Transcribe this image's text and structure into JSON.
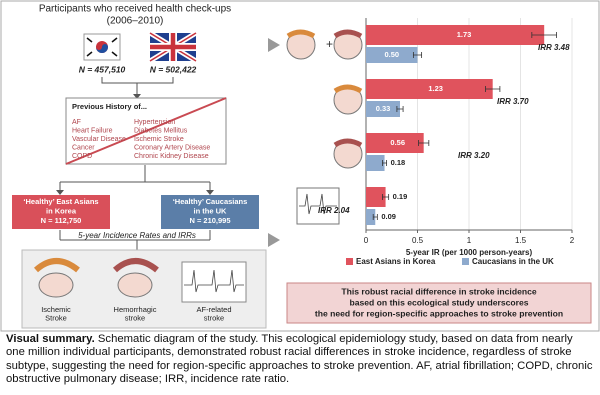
{
  "header": {
    "title_lines": [
      "Participants who received health check-ups",
      "(2006–2010)"
    ]
  },
  "cohorts": [
    {
      "n": "N = 457,510"
    },
    {
      "n": "N = 502,422"
    }
  ],
  "history": {
    "title": "Previous History of...",
    "left_items": [
      "AF",
      "Heart Failure",
      "Vascular Disease",
      "Cancer",
      "COPD"
    ],
    "right_items": [
      "Hypertension",
      "Diabetes Mellitus",
      "Ischemic Stroke",
      "Coronary Artery Disease",
      "Chronic Kidney Disease"
    ]
  },
  "groups": [
    {
      "lines": [
        "‘Healthy’ East Asians",
        "in Korea",
        "N = 112,750"
      ]
    },
    {
      "lines": [
        "‘Healthy’ Caucasians",
        "in the UK",
        "N = 210,995"
      ]
    }
  ],
  "outcomes": {
    "title": "5-year Incidence Rates and IRRs",
    "items": [
      [
        "Ischemic",
        "Stroke"
      ],
      [
        "Hemorrhagic",
        "stroke"
      ],
      [
        "AF-related",
        "stroke"
      ]
    ]
  },
  "chart_data": {
    "type": "bar",
    "orientation": "horizontal",
    "categories": [
      null,
      null,
      null,
      null
    ],
    "series": [
      {
        "name": "East Asians in Korea",
        "color": "#e0535d",
        "values": [
          1.73,
          1.23,
          0.56,
          0.19
        ],
        "value_labels": [
          "1.73",
          "1.23",
          "0.56",
          "0.19"
        ],
        "errors": [
          0.12,
          0.07,
          0.05,
          0.03
        ]
      },
      {
        "name": "Caucasians in the UK",
        "color": "#8eaacd",
        "values": [
          0.5,
          0.33,
          0.18,
          0.09
        ],
        "value_labels": [
          "0.50",
          "0.33",
          "0.18",
          "0.09"
        ],
        "errors": [
          0.04,
          0.03,
          0.02,
          0.02
        ]
      }
    ],
    "annotations": [
      "IRR 3.48",
      "IRR 3.70",
      "IRR 3.20",
      "IRR 2.04"
    ],
    "xlabel": "5-year IR (per 1000 person-years)",
    "xlim": [
      0,
      2
    ],
    "xticks": [
      0,
      0.5,
      1,
      1.5,
      2
    ],
    "grid": true,
    "legend": "bottom"
  },
  "conclusion": [
    "This robust racial difference in stroke incidence",
    "based on this ecological study underscores",
    "the need for region-specific approaches to stroke prevention"
  ],
  "caption": {
    "label": "Visual summary.",
    "text": "Schematic diagram of the study. This ecological epidemiology study, based on data from nearly one million individual participants, demonstrated robust racial differences in stroke incidence, regardless of stroke subtype, suggesting the need for region-specific approaches to stroke prevention. AF, atrial fibrillation; COPD, chronic obstructive pulmonary disease; IRR, incidence rate ratio."
  }
}
